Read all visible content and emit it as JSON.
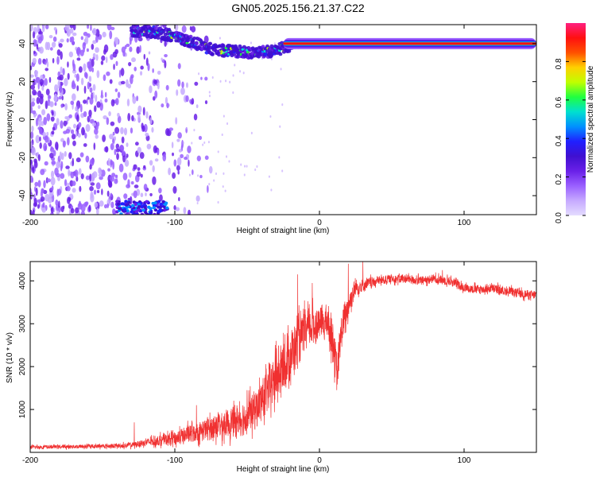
{
  "title": "GN05.2025.156.21.37.C22",
  "colors": {
    "snr_line": "#f03030",
    "colormap": [
      "#e4dcff",
      "#c6aaff",
      "#9a60ff",
      "#6a20e8",
      "#4010d0",
      "#2020ff",
      "#0090ff",
      "#00e0d0",
      "#20ff40",
      "#c0ff00",
      "#ffd000",
      "#ff5000",
      "#ff1010",
      "#ff2080"
    ]
  },
  "chart_data": [
    {
      "type": "heatmap",
      "title": "GN05.2025.156.21.37.C22",
      "xlabel": "Height of straight line (km)",
      "ylabel": "Frequency (Hz)",
      "xlim": [
        -200,
        150
      ],
      "ylim": [
        -50,
        50
      ],
      "xticks": [
        "-200",
        "-100",
        "0",
        "100"
      ],
      "yticks": [
        "-40",
        "-20",
        "0",
        "20",
        "40"
      ],
      "colorbar": {
        "label": "Normalized spectral amplitude",
        "range": [
          0,
          1
        ],
        "ticks": [
          "0.0",
          "0.2",
          "0.4",
          "0.6",
          "0.8"
        ]
      },
      "features": {
        "carrier_band": {
          "x_range": [
            -25,
            150
          ],
          "frequency_hz": 40,
          "amplitude": 0.95
        },
        "scattered_region": {
          "x_range": [
            -200,
            -100
          ],
          "frequency_range_hz": [
            -50,
            50
          ],
          "amplitude_range": [
            0.05,
            0.25
          ]
        },
        "rising_trace": [
          {
            "x": -130,
            "y": 47
          },
          {
            "x": -115,
            "y": 46
          },
          {
            "x": -100,
            "y": 44
          },
          {
            "x": -85,
            "y": 40
          },
          {
            "x": -75,
            "y": 37
          },
          {
            "x": -60,
            "y": 36
          },
          {
            "x": -45,
            "y": 35
          },
          {
            "x": -32,
            "y": 36
          },
          {
            "x": -25,
            "y": 38
          },
          {
            "x": -15,
            "y": 39
          },
          {
            "x": 0,
            "y": 40
          }
        ],
        "bottom_cluster": {
          "x_range": [
            -140,
            -105
          ],
          "frequency_range_hz": [
            -50,
            -43
          ]
        }
      }
    },
    {
      "type": "line",
      "xlabel": "Height of straight line (km)",
      "ylabel": "SNR (10 * v/v)",
      "xlim": [
        -200,
        150
      ],
      "ylim": [
        0,
        4450
      ],
      "xticks": [
        "-200",
        "-100",
        "0",
        "100"
      ],
      "yticks": [
        "1000",
        "2000",
        "3000",
        "4000"
      ],
      "x": [
        -200,
        -180,
        -160,
        -140,
        -130,
        -120,
        -110,
        -100,
        -90,
        -80,
        -70,
        -60,
        -50,
        -45,
        -40,
        -35,
        -30,
        -25,
        -20,
        -15,
        -10,
        -5,
        0,
        5,
        10,
        12,
        15,
        20,
        25,
        30,
        40,
        50,
        60,
        70,
        80,
        90,
        100,
        110,
        120,
        130,
        140,
        150
      ],
      "values": [
        120,
        130,
        140,
        150,
        170,
        230,
        280,
        330,
        420,
        520,
        620,
        700,
        860,
        1000,
        1200,
        1500,
        1750,
        2000,
        2300,
        2550,
        2800,
        2950,
        3000,
        3050,
        2600,
        1700,
        2800,
        3450,
        3850,
        3900,
        4000,
        4050,
        4050,
        4000,
        4050,
        4000,
        3850,
        3800,
        3820,
        3750,
        3700,
        3650
      ],
      "noise_amplitude": [
        40,
        40,
        45,
        50,
        60,
        80,
        120,
        160,
        200,
        240,
        280,
        320,
        380,
        420,
        450,
        500,
        550,
        550,
        550,
        500,
        450,
        400,
        350,
        350,
        500,
        400,
        400,
        300,
        200,
        150,
        100,
        100,
        100,
        100,
        100,
        100,
        100,
        100,
        100,
        100,
        100,
        100
      ],
      "spikes": [
        {
          "x": -128,
          "y": 700
        },
        {
          "x": -85,
          "y": 1100
        },
        {
          "x": -50,
          "y": 1450
        },
        {
          "x": -30,
          "y": 2600
        },
        {
          "x": -15,
          "y": 4150
        },
        {
          "x": -5,
          "y": 3950
        },
        {
          "x": 20,
          "y": 4400
        },
        {
          "x": 30,
          "y": 4450
        },
        {
          "x": 85,
          "y": 4250
        }
      ]
    }
  ]
}
